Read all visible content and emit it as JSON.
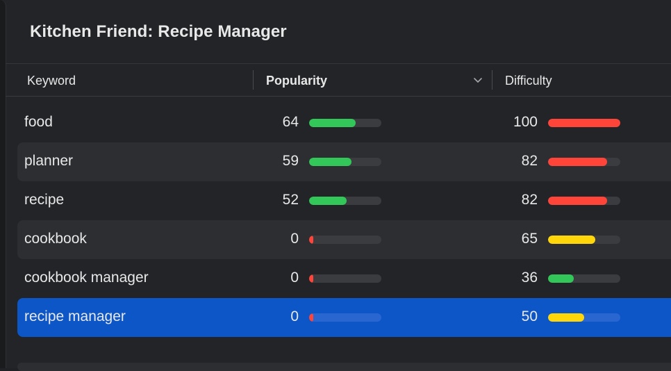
{
  "window": {
    "title": "Kitchen Friend: Recipe Manager"
  },
  "table": {
    "columns": {
      "keyword": "Keyword",
      "popularity": "Popularity",
      "difficulty": "Difficulty"
    },
    "sort_indicator": "chevron-down-icon",
    "rows": [
      {
        "keyword": "food",
        "popularity": "64",
        "popularity_pct": 64,
        "popularity_color": "#33c759",
        "difficulty": "100",
        "difficulty_pct": 100,
        "difficulty_color": "#ff453a"
      },
      {
        "keyword": "planner",
        "popularity": "59",
        "popularity_pct": 59,
        "popularity_color": "#33c759",
        "difficulty": "82",
        "difficulty_pct": 82,
        "difficulty_color": "#ff453a"
      },
      {
        "keyword": "recipe",
        "popularity": "52",
        "popularity_pct": 52,
        "popularity_color": "#33c759",
        "difficulty": "82",
        "difficulty_pct": 82,
        "difficulty_color": "#ff453a"
      },
      {
        "keyword": "cookbook",
        "popularity": "0",
        "popularity_pct": 0,
        "popularity_color": "#ff453a",
        "difficulty": "65",
        "difficulty_pct": 65,
        "difficulty_color": "#ffd60a"
      },
      {
        "keyword": "cookbook manager",
        "popularity": "0",
        "popularity_pct": 0,
        "popularity_color": "#ff453a",
        "difficulty": "36",
        "difficulty_pct": 36,
        "difficulty_color": "#33c759"
      },
      {
        "keyword": "recipe manager",
        "popularity": "0",
        "popularity_pct": 0,
        "popularity_color": "#ff453a",
        "difficulty": "50",
        "difficulty_pct": 50,
        "difficulty_color": "#ffd60a",
        "selected": true
      }
    ]
  },
  "colors": {
    "background": "#222427",
    "row_alt": "#2c2e31",
    "selection": "#0c56c7",
    "good": "#33c759",
    "medium": "#ffd60a",
    "bad": "#ff453a"
  }
}
